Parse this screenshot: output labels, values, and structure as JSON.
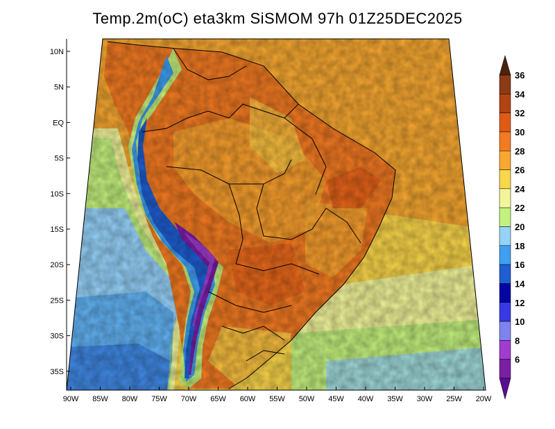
{
  "title": "Temp.2m(oC) eta3km SiSMOM 97h 01Z25DEC2025",
  "lat_labels": [
    "10N",
    "5N",
    "EQ",
    "5S",
    "10S",
    "15S",
    "20S",
    "25S",
    "30S",
    "35S"
  ],
  "lon_labels": [
    "90W",
    "85W",
    "80W",
    "75W",
    "70W",
    "65W",
    "60W",
    "55W",
    "50W",
    "45W",
    "40W",
    "35W",
    "30W",
    "25W",
    "20W"
  ],
  "colorbar": {
    "labels": [
      "6",
      "8",
      "10",
      "12",
      "14",
      "16",
      "18",
      "20",
      "22",
      "24",
      "26",
      "28",
      "30",
      "32",
      "34",
      "36"
    ],
    "colors": [
      "#7a1ea6",
      "#a03ccf",
      "#7f82f0",
      "#3838e6",
      "#0505a6",
      "#1e5ed2",
      "#3f9ff0",
      "#96d2fa",
      "#c4f27e",
      "#f2f59a",
      "#fad64a",
      "#f7a831",
      "#f27a22",
      "#e05a16",
      "#b24312",
      "#8c3b16",
      "#5c2311"
    ],
    "low_color": "#5a0f90",
    "high_color": "#4a220e"
  }
}
